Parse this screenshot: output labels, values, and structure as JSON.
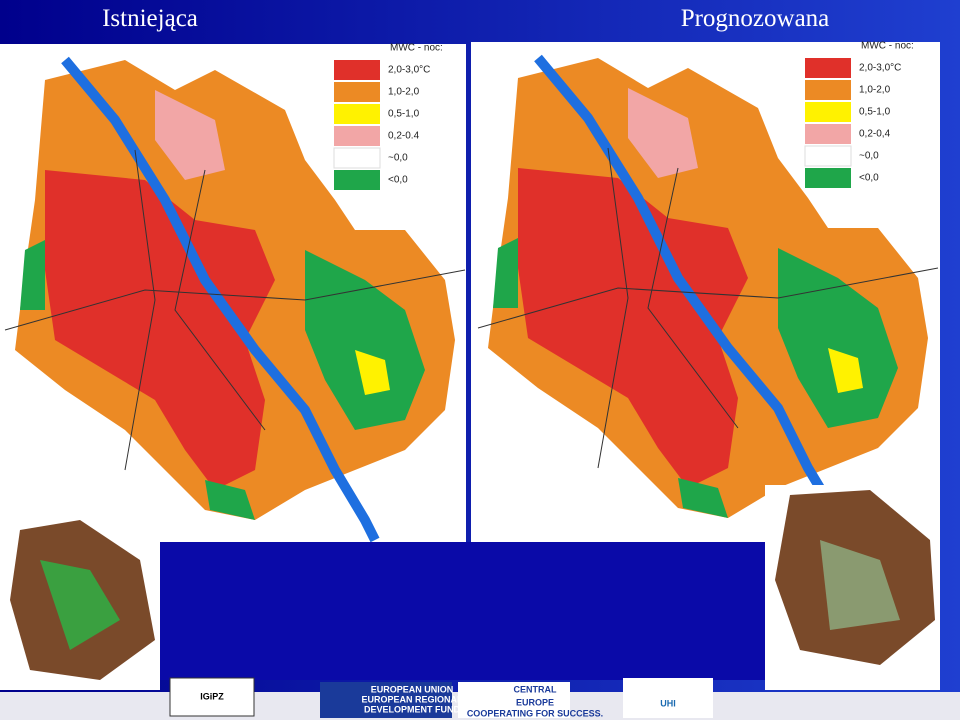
{
  "slide": {
    "maps": [
      {
        "title": "Istniejąca",
        "legend_title": "MWC - noc:",
        "legend": [
          {
            "label": "2,0-3,0°C",
            "color": "#e0302a"
          },
          {
            "label": "1,0-2,0",
            "color": "#ec8a24"
          },
          {
            "label": "0,5-1,0",
            "color": "#fff200"
          },
          {
            "label": "0,2-0.4",
            "color": "#f2a6a6"
          },
          {
            "label": "~0,0",
            "color": "#ffffff"
          },
          {
            "label": "<0,0",
            "color": "#1fa64a"
          }
        ]
      },
      {
        "title": "Prognozowana",
        "legend_title": "MWC - noc:",
        "legend": [
          {
            "label": "2,0-3,0°C",
            "color": "#e0302a"
          },
          {
            "label": "1,0-2,0",
            "color": "#ec8a24"
          },
          {
            "label": "0,5-1,0",
            "color": "#fff200"
          },
          {
            "label": "0,2-0,4",
            "color": "#f2a6a6"
          },
          {
            "label": "~0,0",
            "color": "#ffffff"
          },
          {
            "label": "<0,0",
            "color": "#1fa64a"
          }
        ]
      }
    ],
    "logos": {
      "institute": "IGiPZ",
      "eu_line1": "EUROPEAN UNION",
      "eu_line2": "EUROPEAN REGIONAL",
      "eu_line3": "DEVELOPMENT FUND",
      "ce_line1": "CENTRAL",
      "ce_line2": "EUROPE",
      "ce_line3": "COOPERATING FOR SUCCESS.",
      "uhi": "UHI"
    }
  }
}
